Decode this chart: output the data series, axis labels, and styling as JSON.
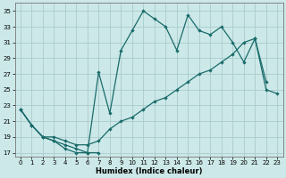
{
  "xlabel": "Humidex (Indice chaleur)",
  "bg_color": "#cce8e8",
  "grid_color": "#aacccc",
  "line_color": "#1a6b6b",
  "xlim": [
    -0.5,
    23.5
  ],
  "ylim": [
    16.5,
    36.0
  ],
  "xticks": [
    0,
    1,
    2,
    3,
    4,
    5,
    6,
    7,
    8,
    9,
    10,
    11,
    12,
    13,
    14,
    15,
    16,
    17,
    18,
    19,
    20,
    21,
    22,
    23
  ],
  "yticks": [
    17,
    19,
    21,
    23,
    25,
    27,
    29,
    31,
    33,
    35
  ],
  "line_a_x": [
    0,
    1,
    2,
    3,
    4,
    5,
    6,
    7
  ],
  "line_a_y": [
    22.5,
    20.5,
    19.0,
    18.5,
    17.5,
    17.0,
    17.0,
    17.0
  ],
  "line_b_x": [
    0,
    1,
    2,
    3,
    4,
    5,
    6,
    7,
    8,
    9,
    10,
    11,
    12,
    13,
    14,
    15,
    16,
    17,
    18,
    19,
    20,
    21,
    22
  ],
  "line_b_y": [
    22.5,
    20.5,
    19.0,
    18.5,
    18.0,
    17.5,
    17.0,
    27.2,
    22.0,
    30.0,
    32.5,
    35.0,
    34.0,
    33.0,
    30.0,
    34.5,
    32.5,
    32.0,
    33.0,
    31.0,
    28.5,
    31.5,
    26.0
  ],
  "line_c_x": [
    0,
    1,
    2,
    3,
    4,
    5,
    6,
    7,
    8,
    9,
    10,
    11,
    12,
    13,
    14,
    15,
    16,
    17,
    18,
    19,
    20,
    21,
    22,
    23
  ],
  "line_c_y": [
    22.5,
    20.5,
    19.0,
    19.0,
    18.5,
    18.0,
    18.0,
    18.5,
    20.0,
    21.0,
    21.5,
    22.5,
    23.5,
    24.0,
    25.0,
    26.0,
    27.0,
    27.5,
    28.5,
    29.5,
    31.0,
    31.5,
    25.0,
    24.5
  ]
}
